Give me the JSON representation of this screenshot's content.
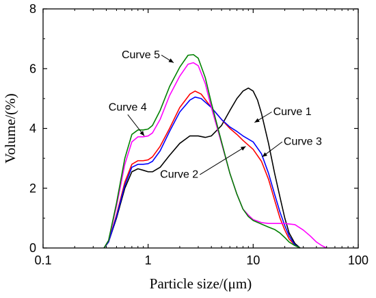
{
  "chart_data": {
    "type": "line",
    "xlabel": "Particle size/(μm)",
    "ylabel": "Volume/(%)",
    "xscale": "log",
    "xlim": [
      0.1,
      100
    ],
    "ylim": [
      0,
      8
    ],
    "x_ticks": [
      0.1,
      1,
      10,
      100
    ],
    "x_tick_labels": [
      "0.1",
      "1",
      "10",
      "100"
    ],
    "y_ticks": [
      0,
      2,
      4,
      6,
      8
    ],
    "y_tick_labels": [
      "0",
      "2",
      "4",
      "6",
      "8"
    ],
    "grid": false,
    "legend": "none",
    "series": [
      {
        "name": "Curve 1",
        "color": "#000000",
        "points": [
          [
            0.38,
            0
          ],
          [
            0.42,
            0.2
          ],
          [
            0.5,
            1.0
          ],
          [
            0.6,
            2.0
          ],
          [
            0.7,
            2.55
          ],
          [
            0.8,
            2.65
          ],
          [
            0.9,
            2.6
          ],
          [
            1.0,
            2.55
          ],
          [
            1.1,
            2.55
          ],
          [
            1.3,
            2.7
          ],
          [
            1.6,
            3.1
          ],
          [
            2.0,
            3.5
          ],
          [
            2.5,
            3.75
          ],
          [
            3.0,
            3.75
          ],
          [
            3.5,
            3.7
          ],
          [
            4.0,
            3.75
          ],
          [
            5.0,
            4.1
          ],
          [
            6.0,
            4.6
          ],
          [
            7.0,
            5.0
          ],
          [
            8.0,
            5.25
          ],
          [
            9.0,
            5.35
          ],
          [
            10.0,
            5.25
          ],
          [
            11.0,
            4.95
          ],
          [
            12.0,
            4.5
          ],
          [
            14.0,
            3.5
          ],
          [
            16.0,
            2.5
          ],
          [
            18.0,
            1.7
          ],
          [
            20.0,
            1.0
          ],
          [
            22.0,
            0.5
          ],
          [
            25.0,
            0.15
          ],
          [
            28.0,
            0
          ]
        ]
      },
      {
        "name": "Curve 2",
        "color": "#ff0000",
        "points": [
          [
            0.38,
            0
          ],
          [
            0.42,
            0.2
          ],
          [
            0.5,
            1.1
          ],
          [
            0.6,
            2.2
          ],
          [
            0.7,
            2.8
          ],
          [
            0.8,
            2.92
          ],
          [
            0.9,
            2.92
          ],
          [
            1.0,
            2.95
          ],
          [
            1.1,
            3.05
          ],
          [
            1.3,
            3.4
          ],
          [
            1.6,
            4.0
          ],
          [
            2.0,
            4.7
          ],
          [
            2.5,
            5.15
          ],
          [
            2.8,
            5.25
          ],
          [
            3.2,
            5.15
          ],
          [
            4.0,
            4.7
          ],
          [
            5.0,
            4.3
          ],
          [
            6.0,
            4.0
          ],
          [
            7.0,
            3.8
          ],
          [
            8.0,
            3.6
          ],
          [
            10.0,
            3.3
          ],
          [
            12.0,
            2.9
          ],
          [
            14.0,
            2.3
          ],
          [
            16.0,
            1.6
          ],
          [
            18.0,
            1.0
          ],
          [
            20.0,
            0.6
          ],
          [
            22.0,
            0.3
          ],
          [
            25.0,
            0.1
          ],
          [
            28.0,
            0
          ]
        ]
      },
      {
        "name": "Curve 3",
        "color": "#0000ff",
        "points": [
          [
            0.38,
            0
          ],
          [
            0.42,
            0.2
          ],
          [
            0.5,
            1.05
          ],
          [
            0.6,
            2.1
          ],
          [
            0.7,
            2.7
          ],
          [
            0.8,
            2.8
          ],
          [
            0.9,
            2.8
          ],
          [
            1.0,
            2.82
          ],
          [
            1.1,
            2.9
          ],
          [
            1.3,
            3.25
          ],
          [
            1.6,
            3.9
          ],
          [
            2.0,
            4.55
          ],
          [
            2.5,
            4.95
          ],
          [
            2.8,
            5.05
          ],
          [
            3.2,
            5.0
          ],
          [
            4.0,
            4.7
          ],
          [
            5.0,
            4.3
          ],
          [
            6.0,
            4.05
          ],
          [
            7.0,
            3.9
          ],
          [
            8.0,
            3.75
          ],
          [
            10.0,
            3.55
          ],
          [
            12.0,
            3.15
          ],
          [
            14.0,
            2.5
          ],
          [
            16.0,
            1.8
          ],
          [
            18.0,
            1.2
          ],
          [
            20.0,
            0.75
          ],
          [
            22.0,
            0.4
          ],
          [
            25.0,
            0.1
          ],
          [
            28.0,
            0
          ]
        ]
      },
      {
        "name": "Curve 4",
        "color": "#ff00ff",
        "points": [
          [
            0.38,
            0
          ],
          [
            0.42,
            0.25
          ],
          [
            0.5,
            1.4
          ],
          [
            0.6,
            2.8
          ],
          [
            0.7,
            3.55
          ],
          [
            0.8,
            3.72
          ],
          [
            0.9,
            3.72
          ],
          [
            1.0,
            3.75
          ],
          [
            1.1,
            3.85
          ],
          [
            1.3,
            4.3
          ],
          [
            1.6,
            5.1
          ],
          [
            2.0,
            5.75
          ],
          [
            2.4,
            6.15
          ],
          [
            2.7,
            6.2
          ],
          [
            3.0,
            6.1
          ],
          [
            3.5,
            5.5
          ],
          [
            4.0,
            4.7
          ],
          [
            5.0,
            3.5
          ],
          [
            6.0,
            2.5
          ],
          [
            7.0,
            1.8
          ],
          [
            8.0,
            1.3
          ],
          [
            9.0,
            1.1
          ],
          [
            10.0,
            0.95
          ],
          [
            12.0,
            0.85
          ],
          [
            14.0,
            0.82
          ],
          [
            16.0,
            0.82
          ],
          [
            20.0,
            0.82
          ],
          [
            25.0,
            0.78
          ],
          [
            30.0,
            0.6
          ],
          [
            35.0,
            0.4
          ],
          [
            40.0,
            0.2
          ],
          [
            45.0,
            0.08
          ],
          [
            50.0,
            0
          ]
        ]
      },
      {
        "name": "Curve 5",
        "color": "#008000",
        "points": [
          [
            0.38,
            0
          ],
          [
            0.42,
            0.25
          ],
          [
            0.5,
            1.5
          ],
          [
            0.6,
            3.0
          ],
          [
            0.7,
            3.8
          ],
          [
            0.8,
            3.95
          ],
          [
            0.9,
            3.95
          ],
          [
            1.0,
            3.98
          ],
          [
            1.1,
            4.1
          ],
          [
            1.3,
            4.6
          ],
          [
            1.6,
            5.4
          ],
          [
            2.0,
            6.05
          ],
          [
            2.4,
            6.45
          ],
          [
            2.7,
            6.47
          ],
          [
            3.0,
            6.35
          ],
          [
            3.5,
            5.7
          ],
          [
            4.0,
            4.85
          ],
          [
            5.0,
            3.55
          ],
          [
            6.0,
            2.5
          ],
          [
            7.0,
            1.8
          ],
          [
            8.0,
            1.3
          ],
          [
            9.0,
            1.05
          ],
          [
            10.0,
            0.92
          ],
          [
            12.0,
            0.8
          ],
          [
            14.0,
            0.7
          ],
          [
            16.0,
            0.62
          ],
          [
            18.0,
            0.5
          ],
          [
            20.0,
            0.35
          ],
          [
            22.0,
            0.2
          ],
          [
            25.0,
            0.08
          ],
          [
            28.0,
            0
          ]
        ]
      }
    ],
    "annotations": [
      {
        "text": "Curve 1",
        "x": 15.5,
        "y": 4.45,
        "point_x": 10.3,
        "point_y": 4.2
      },
      {
        "text": "Curve 3",
        "x": 19.5,
        "y": 3.45,
        "point_x": 12.2,
        "point_y": 3.05
      },
      {
        "text": "Curve 2",
        "x": 1.3,
        "y": 2.35,
        "point_x": 8.5,
        "point_y": 3.4
      },
      {
        "text": "Curve 4",
        "x": 0.42,
        "y": 4.6,
        "point_x": 0.92,
        "point_y": 3.75
      },
      {
        "text": "Curve 5",
        "x": 0.56,
        "y": 6.35,
        "point_x": 1.75,
        "point_y": 6.2
      }
    ]
  }
}
